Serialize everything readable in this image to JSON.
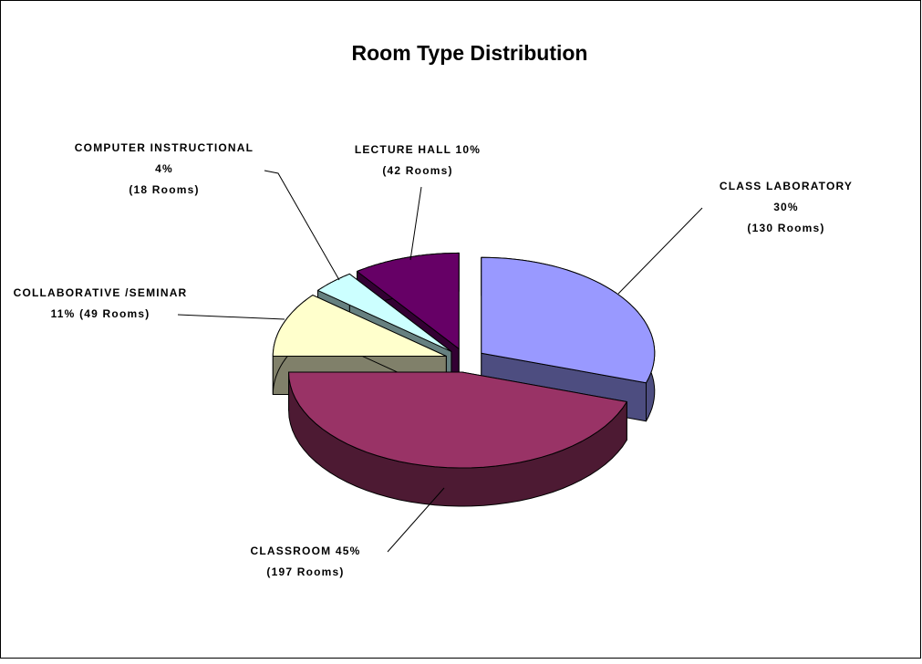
{
  "chart_data": {
    "type": "pie",
    "title": "Room Type Distribution",
    "categories": [
      "CLASS LABORATORY",
      "CLASSROOM",
      "COLLABORATIVE /SEMINAR",
      "COMPUTER INSTRUCTIONAL",
      "LECTURE HALL"
    ],
    "values": [
      30,
      45,
      11,
      4,
      10
    ],
    "value_labels": [
      "30%",
      "45%",
      "11%",
      "4%",
      "10%"
    ],
    "room_labels": [
      "(130 Rooms)",
      "(197 Rooms)",
      "(49 Rooms)",
      "(18 Rooms)",
      "(42 Rooms)"
    ],
    "colors": [
      "#9999ff",
      "#993366",
      "#ffffcc",
      "#ccffff",
      "#660066"
    ],
    "side_colors": [
      "#4d4d80",
      "#4d1a33",
      "#80806a",
      "#668080",
      "#330033"
    ]
  }
}
